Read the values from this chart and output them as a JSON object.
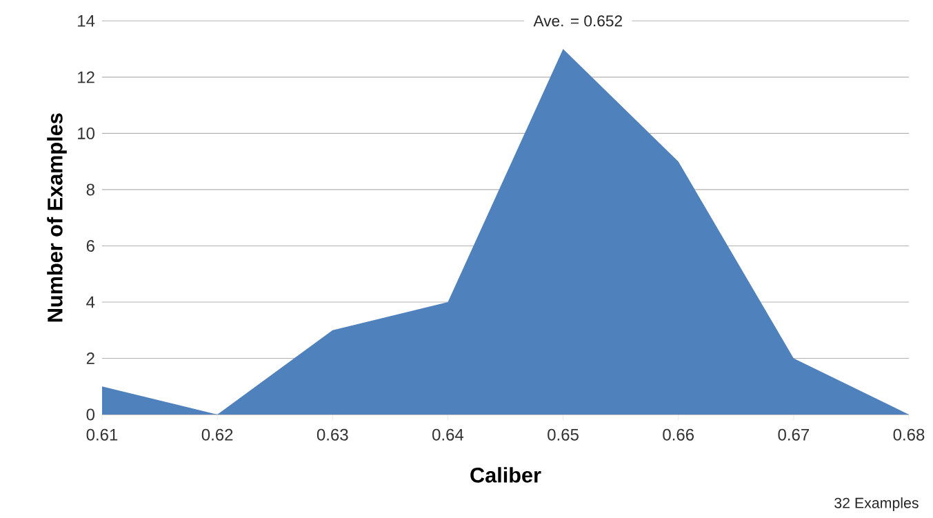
{
  "chart_data": {
    "type": "area",
    "xlabel": "Caliber",
    "ylabel": "Number of Examples",
    "x": [
      0.61,
      0.62,
      0.63,
      0.64,
      0.65,
      0.66,
      0.67,
      0.68
    ],
    "values": [
      1,
      0,
      3,
      4,
      13,
      9,
      2,
      0
    ],
    "color": "#4f81bd",
    "xlim": [
      0.61,
      0.68
    ],
    "xticks": [
      0.61,
      0.62,
      0.63,
      0.64,
      0.65,
      0.66,
      0.67,
      0.68
    ],
    "ylim": [
      0,
      14
    ],
    "yticks": [
      0,
      2,
      4,
      6,
      8,
      10,
      12,
      14
    ],
    "grid": "y",
    "annotations": [
      "Ave. = 0.652",
      "32 Examples"
    ]
  }
}
